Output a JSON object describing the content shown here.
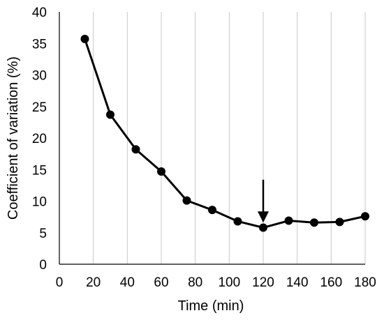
{
  "chart_data": {
    "type": "line",
    "xlabel": "Time (min)",
    "ylabel": "Coefficient of variation (%)",
    "xlim": [
      0,
      180
    ],
    "ylim": [
      0,
      40
    ],
    "xticks": [
      "0",
      "20",
      "40",
      "60",
      "80",
      "100",
      "120",
      "140",
      "160",
      "180"
    ],
    "yticks": [
      "0",
      "5",
      "10",
      "15",
      "20",
      "25",
      "30",
      "35",
      "40"
    ],
    "grid": "vertical",
    "legend": "none",
    "series": [
      {
        "x": [
          15,
          30,
          45,
          60,
          75,
          90,
          105,
          120,
          135,
          150,
          165,
          180
        ],
        "values": [
          35.7,
          23.7,
          18.2,
          14.7,
          10.1,
          8.6,
          6.8,
          5.8,
          6.9,
          6.6,
          6.7,
          7.6
        ],
        "color": "#000000"
      }
    ],
    "annotations": [
      {
        "type": "arrow",
        "x": 120,
        "y_from": 13.4,
        "y_to": 6.6,
        "color": "#000000"
      }
    ]
  }
}
